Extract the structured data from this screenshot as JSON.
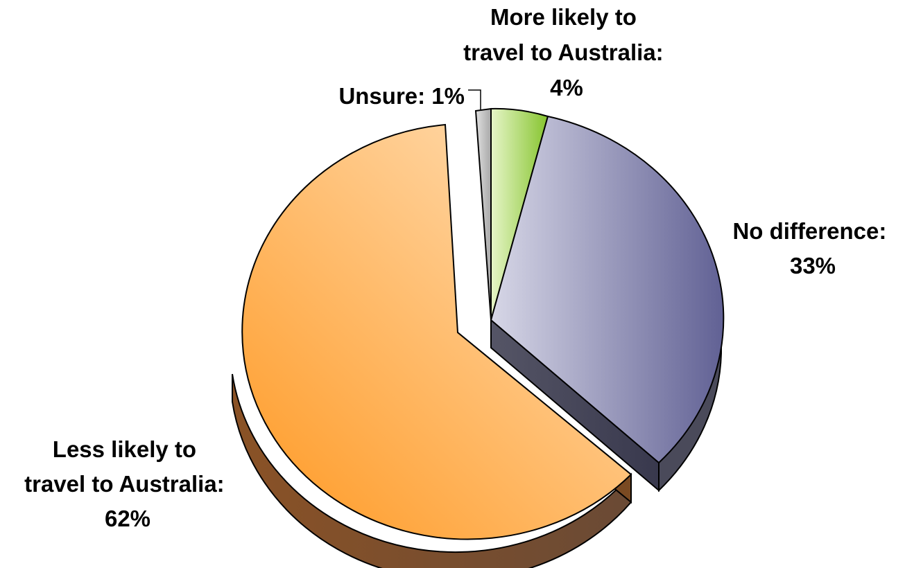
{
  "chart_data": {
    "type": "pie",
    "style": "3d-exploded",
    "slices": [
      {
        "label_lines": [
          "More likely to",
          "travel to Australia:"
        ],
        "pct_label": "4%",
        "value": 4,
        "color": "#8dc63f"
      },
      {
        "label_lines": [
          "No difference:"
        ],
        "pct_label": "33%",
        "value": 33,
        "color": "#6b6b9e"
      },
      {
        "label_lines": [
          "Less likely to",
          "travel to Australia:"
        ],
        "pct_label": "62%",
        "value": 62,
        "color": "#ffa040"
      },
      {
        "label_lines": [
          "Unsure: 1%"
        ],
        "pct_label": "",
        "value": 1,
        "color": "#bdbdbd"
      }
    ]
  }
}
